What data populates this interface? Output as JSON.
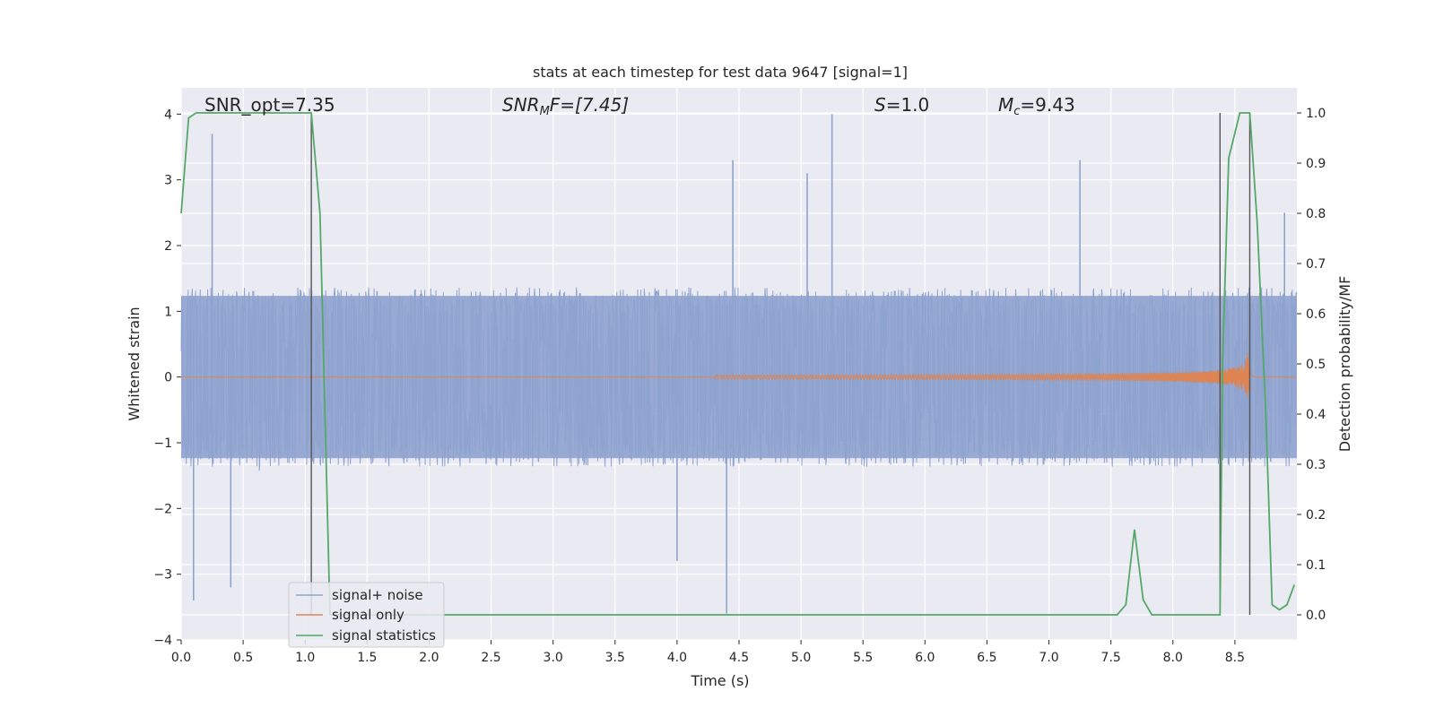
{
  "chart_data": {
    "type": "line",
    "title": "stats at each timestep for test data 9647 [signal=1]",
    "xlabel": "Time (s)",
    "ylabel": "Whitened strain",
    "y2label": "Detection probability/MF",
    "xlim": [
      0,
      9.0
    ],
    "ylim": [
      -4,
      4.4
    ],
    "y2lim": [
      -0.05,
      1.05
    ],
    "grid": true,
    "legend_position": "lower-left",
    "x_ticks": [
      0,
      0.5,
      1,
      1.5,
      2,
      2.5,
      3,
      3.5,
      4,
      4.5,
      5,
      5.5,
      6,
      6.5,
      7,
      7.5,
      8,
      8.5
    ],
    "x_tick_labels": [
      "0.0",
      "0.5",
      "1.0",
      "1.5",
      "2.0",
      "2.5",
      "3.0",
      "3.5",
      "4.0",
      "4.5",
      "5.0",
      "5.5",
      "6.0",
      "6.5",
      "7.0",
      "7.5",
      "8.0",
      "8.5"
    ],
    "y_ticks": [
      -4,
      -3,
      -2,
      -1,
      0,
      1,
      2,
      3,
      4
    ],
    "y_tick_labels": [
      "−4",
      "−3",
      "−2",
      "−1",
      "0",
      "1",
      "2",
      "3",
      "4"
    ],
    "y2_ticks": [
      0,
      0.1,
      0.2,
      0.3,
      0.4,
      0.5,
      0.6,
      0.7,
      0.8,
      0.9,
      1.0
    ],
    "y2_tick_labels": [
      "0.0",
      "0.1",
      "0.2",
      "0.3",
      "0.4",
      "0.5",
      "0.6",
      "0.7",
      "0.8",
      "0.9",
      "1.0"
    ],
    "annotations": {
      "snr_opt": "SNR_opt=7.35",
      "snr_mf_main": "SNR",
      "snr_mf_sub": "M",
      "snr_mf_rest": "F=[7.45]",
      "s_italic": "S",
      "s_rest": "=1.0",
      "mc_main": "M",
      "mc_sub": "c",
      "mc_rest": "=9.43"
    },
    "series": [
      {
        "name": "signal+ noise",
        "color": "#8fa3cf",
        "description_values": "whitened noise, approx ±1.3 dense band with spikes up to 4 and down to -3.6",
        "noise_envelope": 1.3,
        "peaks": [
          {
            "x": 0.25,
            "y": 3.7
          },
          {
            "x": 5.25,
            "y": 4.0
          },
          {
            "x": 4.45,
            "y": 3.3
          },
          {
            "x": 7.25,
            "y": 3.3
          },
          {
            "x": 5.05,
            "y": 3.1
          },
          {
            "x": 4.4,
            "y": -3.6
          },
          {
            "x": 0.4,
            "y": -3.2
          },
          {
            "x": 0.1,
            "y": -3.4
          },
          {
            "x": 4.0,
            "y": -2.8
          },
          {
            "x": 8.9,
            "y": 2.5
          }
        ]
      },
      {
        "name": "signal only",
        "color": "#dd8452",
        "chirp": {
          "t_start": 4.3,
          "t_merge": 8.62,
          "amp_start": 0.03,
          "amp_peak": 0.72
        }
      },
      {
        "name": "signal statistics",
        "color": "#55a868",
        "axis": "y2",
        "x": [
          0.0,
          0.06,
          0.12,
          0.5,
          1.0,
          1.05,
          1.12,
          1.2,
          1.3,
          2.0,
          4.0,
          6.0,
          7.0,
          7.55,
          7.62,
          7.69,
          7.76,
          7.83,
          8.0,
          8.2,
          8.38,
          8.4,
          8.45,
          8.54,
          8.62,
          8.68,
          8.75,
          8.8,
          8.86,
          8.92,
          8.98
        ],
        "values": [
          0.8,
          0.99,
          1.0,
          1.0,
          1.0,
          1.0,
          0.8,
          0.0,
          0.0,
          0.0,
          0.0,
          0.0,
          0.0,
          0.0,
          0.02,
          0.17,
          0.03,
          0.0,
          0.0,
          0.0,
          0.0,
          0.5,
          0.91,
          1.0,
          1.0,
          0.78,
          0.4,
          0.02,
          0.01,
          0.02,
          0.06
        ]
      }
    ],
    "vertical_lines": [
      1.05,
      8.38,
      8.62
    ]
  }
}
